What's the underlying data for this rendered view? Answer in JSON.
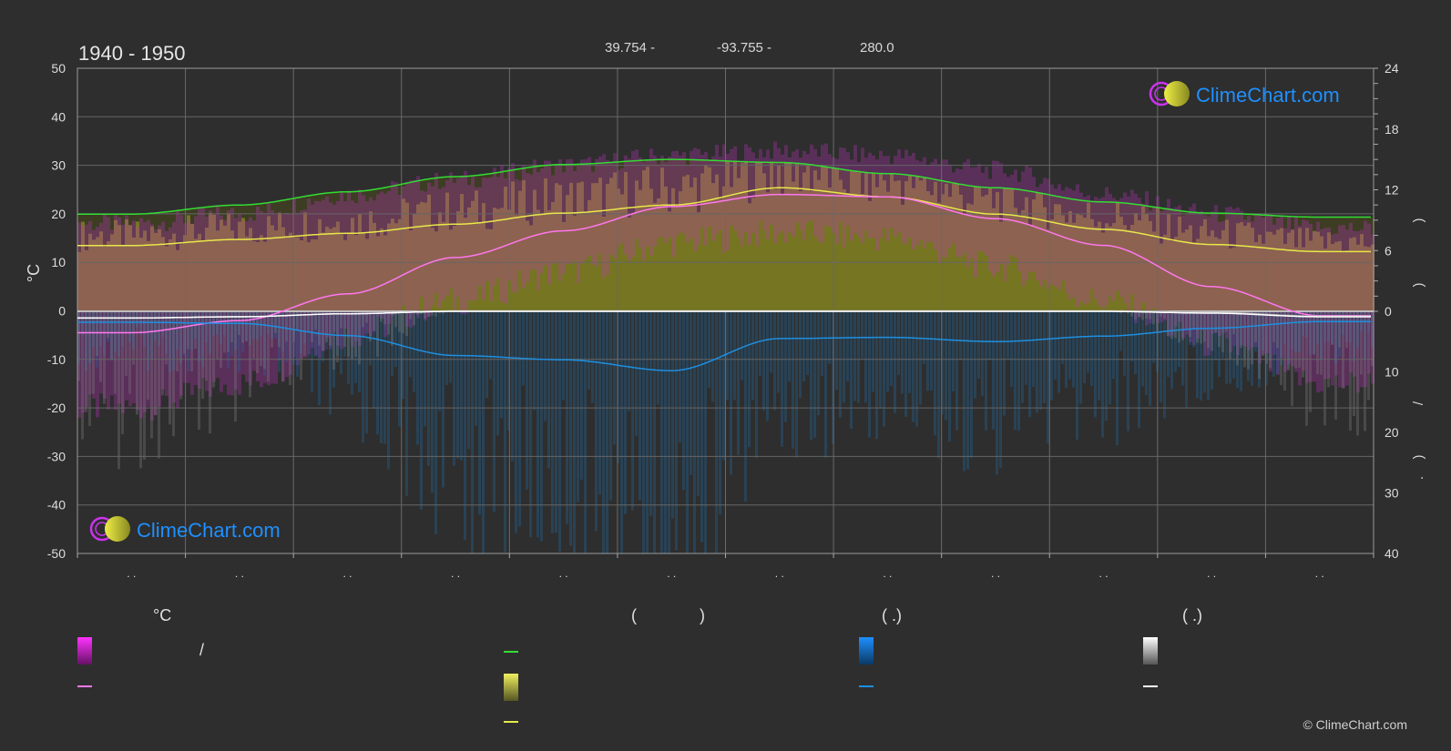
{
  "header": {
    "period": "1940 - 1950",
    "latitude": "39.754 -",
    "longitude": "-93.755 -",
    "elevation": "280.0"
  },
  "branding": {
    "logo_text": "ClimeChart.com",
    "copyright": "© ClimeChart.com"
  },
  "legend": {
    "temp_title": "°C",
    "temp_range_sep": "/",
    "sun_title_open": "(",
    "sun_title_close": ")",
    "rain_title": "(   .)",
    "snow_title": "(   .)"
  },
  "chart_data": {
    "type": "line",
    "x_label_month_placeholders": [
      ". .",
      ". .",
      ". .",
      ". .",
      ". .",
      ". .",
      ". .",
      ". .",
      ". .",
      ". .",
      ". .",
      ". ."
    ],
    "y_left": {
      "label": "°C",
      "ticks": [
        50,
        40,
        30,
        20,
        10,
        0,
        -10,
        -20,
        -30,
        -40,
        -50
      ],
      "range": [
        -50,
        50
      ]
    },
    "y_right_top": {
      "ticks": [
        24,
        18,
        12,
        6,
        0
      ],
      "range": [
        0,
        24
      ]
    },
    "y_right_bottom": {
      "ticks": [
        10,
        20,
        30,
        40
      ],
      "range": [
        0,
        40
      ]
    },
    "right_axis_marks": [
      ")",
      ")",
      "/",
      ")",
      "."
    ],
    "x_positions_month_mid": [
      0.5,
      1.5,
      2.5,
      3.5,
      4.5,
      5.5,
      6.5,
      7.5,
      8.5,
      9.5,
      10.5,
      11.5
    ],
    "series": [
      {
        "key": "daylight",
        "color": "#33dd33",
        "values_hours": [
          9.6,
          10.5,
          11.8,
          13.3,
          14.5,
          15.0,
          14.7,
          13.6,
          12.2,
          10.8,
          9.7,
          9.3
        ]
      },
      {
        "key": "sunshine",
        "color": "#e8e84a",
        "values_hours": [
          6.5,
          7.1,
          7.7,
          8.6,
          9.7,
          10.5,
          12.2,
          11.3,
          9.6,
          8.1,
          6.6,
          5.9
        ]
      },
      {
        "key": "temp_max_mean",
        "color": "#ff77ee",
        "values": [
          -4.5,
          -2.0,
          3.5,
          11.0,
          16.5,
          21.5,
          24.0,
          23.5,
          19.0,
          13.5,
          5.0,
          -1.0
        ]
      },
      {
        "key": "temp_min_mean",
        "color": "#aaaaaa",
        "values": [
          -1.5,
          -1.2,
          -0.6,
          0.0,
          0.0,
          0.0,
          0.0,
          0.0,
          0.0,
          0.0,
          -0.3,
          -1.1
        ]
      },
      {
        "key": "rain_mean",
        "color": "#1e8fe0",
        "values_mm": [
          1.8,
          2.0,
          4.0,
          7.3,
          8.0,
          9.8,
          4.5,
          4.3,
          5.0,
          4.1,
          2.8,
          1.7
        ]
      },
      {
        "key": "snow_mean",
        "color": "#ffffff",
        "values_mm": [
          1.1,
          0.9,
          0.4,
          0.0,
          0.0,
          0.0,
          0.0,
          0.0,
          0.0,
          0.0,
          0.3,
          0.9
        ]
      }
    ],
    "daily_temp_band": {
      "color": "#cc33cc",
      "min_values": [
        -20,
        -15,
        -5,
        2,
        8,
        14,
        16,
        15,
        9,
        2,
        -7,
        -15
      ],
      "max_values": [
        18,
        20,
        24,
        27,
        30,
        32,
        33,
        32,
        29,
        24,
        20,
        17
      ]
    },
    "daily_sun_band": {
      "color": "#bbbb22"
    },
    "daily_rain_band": {
      "color": "#1e6fb0"
    },
    "daily_snow_band": {
      "color": "#888888"
    }
  },
  "colors": {
    "background": "#2e2e2e",
    "grid": "#6a6a6a",
    "axis_text": "#dddddd",
    "accent_blue": "#1e90ff",
    "accent_magenta": "#dd22dd",
    "accent_yellow": "#e8e84a"
  }
}
